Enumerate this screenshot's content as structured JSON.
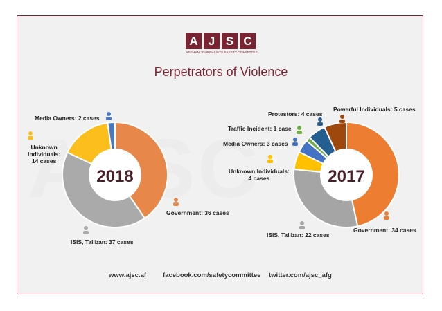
{
  "brand": {
    "letters": [
      "A",
      "J",
      "S",
      "C"
    ],
    "tagline": "AFGHAN JOURNALISTS SAFETY COMMITTEE"
  },
  "title": "Perpetrators of Violence",
  "chart_data": [
    {
      "type": "pie",
      "year": "2018",
      "slices": [
        {
          "label": "Government",
          "display": "Government: 36 cases",
          "value": 36,
          "color": "#e8874a"
        },
        {
          "label": "ISIS, Taliban",
          "display": "ISIS, Taliban: 37 cases",
          "value": 37,
          "color": "#aaaaaa"
        },
        {
          "label": "Unknown Individuals",
          "display": [
            "Unknown",
            "Individuals:",
            "14 cases"
          ],
          "value": 14,
          "color": "#fcbe1c"
        },
        {
          "label": "Media Owners",
          "display": "Media Owners: 2 cases",
          "value": 2,
          "color": "#4a79bf"
        }
      ]
    },
    {
      "type": "pie",
      "year": "2017",
      "slices": [
        {
          "label": "Government",
          "display": "Government: 34 cases",
          "value": 34,
          "color": "#ed7d31"
        },
        {
          "label": "ISIS, Taliban",
          "display": "ISIS, Taliban: 22 cases",
          "value": 22,
          "color": "#a5a5a5"
        },
        {
          "label": "Unknown Individuals",
          "display": [
            "Unknown Individuals:",
            "4 cases"
          ],
          "value": 4,
          "color": "#ffc000"
        },
        {
          "label": "Media Owners",
          "display": "Media Owners: 3 cases",
          "value": 3,
          "color": "#4472c4"
        },
        {
          "label": "Traffic Incident",
          "display": "Traffic Incident: 1 case",
          "value": 1,
          "color": "#70ad47"
        },
        {
          "label": "Protestors",
          "display": "Protestors: 4 cases",
          "value": 4,
          "color": "#255e91"
        },
        {
          "label": "Powerful Individuals",
          "display": "Powerful Individuals: 5 cases",
          "value": 5,
          "color": "#9e480e"
        }
      ]
    }
  ],
  "footer": {
    "website": "www.ajsc.af",
    "facebook": "facebook.com/safetycommittee",
    "twitter": "twitter.com/ajsc_afg"
  }
}
